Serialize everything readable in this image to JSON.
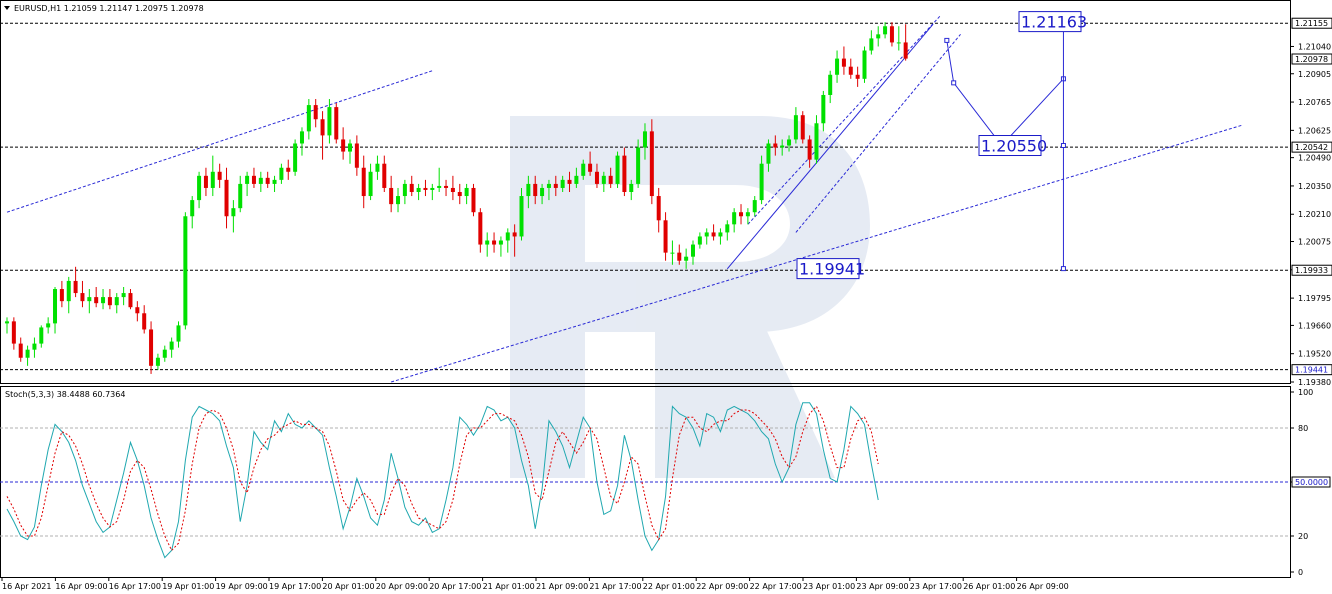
{
  "chart_data": [
    {
      "type": "candlestick",
      "title": "EURUSD,H1  1.21059 1.21147 1.20975 1.20978",
      "ylim": [
        1.1938,
        1.2126
      ],
      "y_ticks": [
        "1.21040",
        "1.20905",
        "1.20765",
        "1.20625",
        "1.20490",
        "1.20350",
        "1.20210",
        "1.20075",
        "1.19935",
        "1.19795",
        "1.19660",
        "1.19520",
        "1.19380"
      ],
      "x_ticks": [
        "16 Apr 2021",
        "16 Apr 09:00",
        "16 Apr 17:00",
        "19 Apr 01:00",
        "19 Apr 09:00",
        "19 Apr 17:00",
        "20 Apr 01:00",
        "20 Apr 09:00",
        "20 Apr 17:00",
        "21 Apr 01:00",
        "21 Apr 09:00",
        "21 Apr 17:00",
        "22 Apr 01:00",
        "22 Apr 09:00",
        "22 Apr 17:00",
        "23 Apr 01:00",
        "23 Apr 09:00",
        "23 Apr 17:00",
        "26 Apr 01:00",
        "26 Apr 09:00"
      ],
      "up_color": "#00e000",
      "down_color": "#e00000",
      "ohlc": [
        [
          1.1967,
          1.197,
          1.1962,
          1.1968
        ],
        [
          1.1968,
          1.197,
          1.1954,
          1.1957
        ],
        [
          1.1957,
          1.196,
          1.1948,
          1.195
        ],
        [
          1.195,
          1.1956,
          1.1946,
          1.1954
        ],
        [
          1.1954,
          1.196,
          1.195,
          1.1957
        ],
        [
          1.1957,
          1.1966,
          1.1955,
          1.1965
        ],
        [
          1.1965,
          1.197,
          1.1962,
          1.1967
        ],
        [
          1.1967,
          1.1985,
          1.1962,
          1.1984
        ],
        [
          1.1984,
          1.1988,
          1.1975,
          1.1978
        ],
        [
          1.1978,
          1.199,
          1.1972,
          1.1988
        ],
        [
          1.1988,
          1.1995,
          1.198,
          1.1982
        ],
        [
          1.1982,
          1.1988,
          1.1975,
          1.1978
        ],
        [
          1.1978,
          1.1984,
          1.1972,
          1.198
        ],
        [
          1.198,
          1.1985,
          1.1975,
          1.1977
        ],
        [
          1.1977,
          1.1984,
          1.1974,
          1.198
        ],
        [
          1.198,
          1.1984,
          1.1974,
          1.1976
        ],
        [
          1.1976,
          1.1982,
          1.1972,
          1.198
        ],
        [
          1.198,
          1.1985,
          1.1976,
          1.1982
        ],
        [
          1.1982,
          1.1984,
          1.1974,
          1.1975
        ],
        [
          1.1975,
          1.1978,
          1.1968,
          1.1972
        ],
        [
          1.1972,
          1.1976,
          1.1962,
          1.1964
        ],
        [
          1.1964,
          1.1968,
          1.1942,
          1.1946
        ],
        [
          1.1946,
          1.1952,
          1.1944,
          1.195
        ],
        [
          1.195,
          1.1956,
          1.1948,
          1.1954
        ],
        [
          1.1954,
          1.196,
          1.195,
          1.1958
        ],
        [
          1.1958,
          1.1968,
          1.1955,
          1.1966
        ],
        [
          1.1966,
          1.2022,
          1.1964,
          1.202
        ],
        [
          1.202,
          1.203,
          1.2014,
          1.2028
        ],
        [
          1.2028,
          1.2042,
          1.2024,
          1.204
        ],
        [
          1.204,
          1.2044,
          1.203,
          1.2034
        ],
        [
          1.2034,
          1.205,
          1.203,
          1.2042
        ],
        [
          1.2042,
          1.2046,
          1.2034,
          1.2038
        ],
        [
          1.2038,
          1.2044,
          1.2014,
          1.202
        ],
        [
          1.202,
          1.2028,
          1.2012,
          1.2024
        ],
        [
          1.2024,
          1.204,
          1.2022,
          1.2036
        ],
        [
          1.2036,
          1.2042,
          1.203,
          1.204
        ],
        [
          1.204,
          1.2044,
          1.2034,
          1.2036
        ],
        [
          1.2036,
          1.2042,
          1.2032,
          1.2039
        ],
        [
          1.2039,
          1.2042,
          1.2034,
          1.2036
        ],
        [
          1.2036,
          1.204,
          1.2032,
          1.2038
        ],
        [
          1.2038,
          1.2046,
          1.2036,
          1.2044
        ],
        [
          1.2044,
          1.2048,
          1.2038,
          1.2042
        ],
        [
          1.2042,
          1.2058,
          1.204,
          1.2056
        ],
        [
          1.2056,
          1.2064,
          1.205,
          1.2062
        ],
        [
          1.2062,
          1.2078,
          1.2058,
          1.2075
        ],
        [
          1.2075,
          1.2078,
          1.2064,
          1.2068
        ],
        [
          1.2068,
          1.2072,
          1.2048,
          1.206
        ],
        [
          1.206,
          1.2078,
          1.2056,
          1.2074
        ],
        [
          1.2074,
          1.2076,
          1.2056,
          1.2058
        ],
        [
          1.2058,
          1.2064,
          1.2048,
          1.2052
        ],
        [
          1.2052,
          1.2058,
          1.2046,
          1.2056
        ],
        [
          1.2056,
          1.206,
          1.204,
          1.2044
        ],
        [
          1.2044,
          1.205,
          1.2024,
          1.203
        ],
        [
          1.203,
          1.2046,
          1.2028,
          1.2042
        ],
        [
          1.2042,
          1.205,
          1.2038,
          1.2046
        ],
        [
          1.2046,
          1.205,
          1.2032,
          1.2034
        ],
        [
          1.2034,
          1.204,
          1.2022,
          1.2026
        ],
        [
          1.2026,
          1.2034,
          1.2022,
          1.203
        ],
        [
          1.203,
          1.2038,
          1.2026,
          1.2036
        ],
        [
          1.2036,
          1.204,
          1.203,
          1.2032
        ],
        [
          1.2032,
          1.2036,
          1.2028,
          1.2034
        ],
        [
          1.2034,
          1.2038,
          1.203,
          1.2033
        ],
        [
          1.2033,
          1.2036,
          1.2028,
          1.2034
        ],
        [
          1.2034,
          1.2044,
          1.2032,
          1.2035
        ],
        [
          1.2035,
          1.2038,
          1.203,
          1.2034
        ],
        [
          1.2034,
          1.204,
          1.2028,
          1.2032
        ],
        [
          1.2032,
          1.2036,
          1.2026,
          1.203
        ],
        [
          1.203,
          1.2036,
          1.2026,
          1.2034
        ],
        [
          1.2034,
          1.2036,
          1.202,
          1.2022
        ],
        [
          1.2022,
          1.2024,
          1.2002,
          1.2006
        ],
        [
          1.2006,
          1.2012,
          1.2,
          1.2008
        ],
        [
          1.2008,
          1.2012,
          1.2002,
          1.2006
        ],
        [
          1.2006,
          1.201,
          1.2,
          1.2008
        ],
        [
          1.2008,
          1.2014,
          1.2002,
          1.2012
        ],
        [
          1.2012,
          1.2016,
          1.2,
          1.201
        ],
        [
          1.201,
          1.2034,
          1.2008,
          1.203
        ],
        [
          1.203,
          1.204,
          1.2024,
          1.2036
        ],
        [
          1.2036,
          1.204,
          1.2026,
          1.203
        ],
        [
          1.203,
          1.2036,
          1.2026,
          1.2034
        ],
        [
          1.2034,
          1.2038,
          1.2028,
          1.2036
        ],
        [
          1.2036,
          1.204,
          1.203,
          1.2034
        ],
        [
          1.2034,
          1.204,
          1.2032,
          1.2038
        ],
        [
          1.2038,
          1.2042,
          1.2032,
          1.2036
        ],
        [
          1.2036,
          1.2044,
          1.2034,
          1.204
        ],
        [
          1.204,
          1.2048,
          1.2038,
          1.2046
        ],
        [
          1.2046,
          1.2052,
          1.204,
          1.2042
        ],
        [
          1.2042,
          1.2046,
          1.2034,
          1.2036
        ],
        [
          1.2036,
          1.2042,
          1.2032,
          1.204
        ],
        [
          1.204,
          1.2044,
          1.2034,
          1.2036
        ],
        [
          1.2036,
          1.2052,
          1.2034,
          1.205
        ],
        [
          1.205,
          1.2054,
          1.203,
          1.2032
        ],
        [
          1.2032,
          1.2038,
          1.2028,
          1.2036
        ],
        [
          1.2036,
          1.2058,
          1.2034,
          1.2054
        ],
        [
          1.2054,
          1.2066,
          1.2048,
          1.2062
        ],
        [
          1.2062,
          1.2068,
          1.2026,
          1.203
        ],
        [
          1.203,
          1.2034,
          1.2012,
          1.2018
        ],
        [
          1.2018,
          1.2022,
          1.1998,
          1.2002
        ],
        [
          1.2002,
          1.2008,
          1.1996,
          1.2002
        ],
        [
          1.2002,
          1.2006,
          1.1996,
          1.1998
        ],
        [
          1.1998,
          1.2004,
          1.1994,
          1.2
        ],
        [
          1.2,
          1.2008,
          1.1996,
          1.2006
        ],
        [
          1.2006,
          1.2012,
          1.2004,
          1.201
        ],
        [
          1.201,
          1.2014,
          1.2006,
          1.2012
        ],
        [
          1.2012,
          1.2016,
          1.2008,
          1.201
        ],
        [
          1.201,
          1.2014,
          1.2006,
          1.2012
        ],
        [
          1.2012,
          1.2018,
          1.2008,
          1.2016
        ],
        [
          1.2016,
          1.2024,
          1.2012,
          1.2022
        ],
        [
          1.2022,
          1.2026,
          1.2016,
          1.202
        ],
        [
          1.202,
          1.2024,
          1.2016,
          1.2022
        ],
        [
          1.2022,
          1.203,
          1.202,
          1.2028
        ],
        [
          1.2028,
          1.205,
          1.2026,
          1.2046
        ],
        [
          1.2046,
          1.2058,
          1.2042,
          1.2056
        ],
        [
          1.2056,
          1.206,
          1.205,
          1.2054
        ],
        [
          1.2054,
          1.2058,
          1.205,
          1.2055
        ],
        [
          1.2055,
          1.206,
          1.2052,
          1.2058
        ],
        [
          1.2058,
          1.2074,
          1.2056,
          1.207
        ],
        [
          1.207,
          1.2072,
          1.2056,
          1.2058
        ],
        [
          1.2058,
          1.206,
          1.2044,
          1.2048
        ],
        [
          1.2048,
          1.207,
          1.2046,
          1.2066
        ],
        [
          1.2066,
          1.2082,
          1.2062,
          1.208
        ],
        [
          1.208,
          1.2092,
          1.2076,
          1.209
        ],
        [
          1.209,
          1.2102,
          1.2086,
          1.2098
        ],
        [
          1.2098,
          1.2104,
          1.209,
          1.2094
        ],
        [
          1.2094,
          1.2098,
          1.2088,
          1.209
        ],
        [
          1.209,
          1.2094,
          1.2084,
          1.2088
        ],
        [
          1.2088,
          1.2104,
          1.2086,
          1.2102
        ],
        [
          1.2102,
          1.2112,
          1.21,
          1.2108
        ],
        [
          1.2108,
          1.2114,
          1.2104,
          1.211
        ],
        [
          1.211,
          1.2116,
          1.2108,
          1.2114
        ],
        [
          1.2114,
          1.2116,
          1.2104,
          1.2106
        ],
        [
          1.2106,
          1.2114,
          1.2102,
          1.2106
        ],
        [
          1.2106,
          1.2115,
          1.2097,
          1.2098
        ]
      ],
      "horizontal_levels": [
        {
          "price": 1.21155,
          "label": "1.21155",
          "highlight": true
        },
        {
          "price": 1.20978,
          "label": "1.20978",
          "highlight": false
        },
        {
          "price": 1.20542,
          "label": "1.20542",
          "highlight": true
        },
        {
          "price": 1.19933,
          "label": "1.19933",
          "highlight": true
        },
        {
          "price": 1.19441,
          "label": "1.19441",
          "highlight": true
        }
      ],
      "annotations": [
        {
          "text": "1.21163",
          "price": 1.21163
        },
        {
          "text": "1.20550",
          "price": 1.2055
        },
        {
          "text": "1.19941",
          "price": 1.19941
        }
      ],
      "forecast_path": [
        {
          "bar": 137,
          "price": 1.2107
        },
        {
          "bar": 138,
          "price": 1.2086
        },
        {
          "bar": 145,
          "price": 1.2055
        },
        {
          "bar": 154,
          "price": 1.2088
        }
      ],
      "range_bar": {
        "bar": 154,
        "high": 1.21163,
        "mid": 1.2055,
        "low": 1.19941
      },
      "channel": {
        "lower": [
          {
            "bar": 105,
            "price": 1.1994
          },
          {
            "bar": 135,
            "price": 1.2115
          }
        ],
        "upper": [
          {
            "bar": 108,
            "price": 1.2016
          },
          {
            "bar": 136,
            "price": 1.2119
          }
        ],
        "inner": [
          {
            "bar": 115,
            "price": 1.2012
          },
          {
            "bar": 139,
            "price": 1.211
          }
        ]
      },
      "trendlines": [
        {
          "from": {
            "bar": 0,
            "price": 1.2022
          },
          "to": {
            "bar": 62,
            "price": 1.2092
          }
        },
        {
          "from": {
            "bar": 56,
            "price": 1.1938
          },
          "to": {
            "bar": 180,
            "price": 1.2065
          }
        }
      ]
    },
    {
      "type": "line",
      "title": "Stoch(5,3,3) 38.4488 60.7364",
      "ylim": [
        0,
        100
      ],
      "y_ticks": [
        "100",
        "80",
        "50.0000",
        "20",
        "0"
      ],
      "levels": [
        80,
        50,
        20
      ],
      "series": [
        {
          "color": "#20a8b0",
          "dash": false,
          "values": [
            35,
            28,
            20,
            18,
            25,
            48,
            68,
            82,
            78,
            72,
            62,
            48,
            38,
            28,
            22,
            25,
            40,
            55,
            72,
            62,
            48,
            30,
            18,
            8,
            12,
            28,
            62,
            86,
            92,
            90,
            88,
            84,
            70,
            58,
            28,
            48,
            78,
            72,
            68,
            84,
            78,
            88,
            82,
            80,
            84,
            80,
            76,
            58,
            42,
            24,
            36,
            52,
            42,
            30,
            26,
            40,
            66,
            52,
            36,
            28,
            26,
            30,
            22,
            24,
            40,
            58,
            86,
            82,
            76,
            82,
            92,
            90,
            84,
            86,
            80,
            62,
            48,
            24,
            46,
            84,
            78,
            70,
            58,
            72,
            86,
            80,
            50,
            32,
            34,
            48,
            76,
            62,
            40,
            20,
            12,
            18,
            42,
            92,
            88,
            86,
            80,
            70,
            88,
            86,
            78,
            90,
            92,
            90,
            88,
            84,
            78,
            74,
            60,
            50,
            58,
            82,
            94,
            94,
            88,
            68,
            52,
            50,
            68,
            92,
            88,
            82,
            60,
            40
          ]
        },
        {
          "color": "#e00000",
          "dash": true,
          "values": [
            42,
            35,
            26,
            20,
            20,
            30,
            48,
            66,
            78,
            76,
            70,
            60,
            48,
            38,
            30,
            25,
            28,
            40,
            56,
            62,
            58,
            46,
            32,
            20,
            12,
            16,
            34,
            60,
            80,
            88,
            90,
            88,
            80,
            68,
            50,
            44,
            58,
            68,
            74,
            76,
            80,
            82,
            84,
            82,
            82,
            80,
            78,
            70,
            56,
            40,
            34,
            40,
            44,
            40,
            32,
            32,
            44,
            52,
            48,
            38,
            30,
            28,
            26,
            24,
            28,
            40,
            60,
            76,
            80,
            80,
            84,
            88,
            88,
            86,
            84,
            76,
            64,
            44,
            40,
            56,
            72,
            78,
            72,
            66,
            72,
            80,
            74,
            58,
            42,
            38,
            50,
            64,
            60,
            42,
            26,
            18,
            24,
            52,
            76,
            86,
            86,
            80,
            78,
            82,
            84,
            84,
            88,
            90,
            90,
            88,
            84,
            80,
            74,
            64,
            58,
            64,
            78,
            88,
            92,
            84,
            70,
            58,
            58,
            74,
            84,
            86,
            78,
            60
          ]
        }
      ]
    }
  ]
}
